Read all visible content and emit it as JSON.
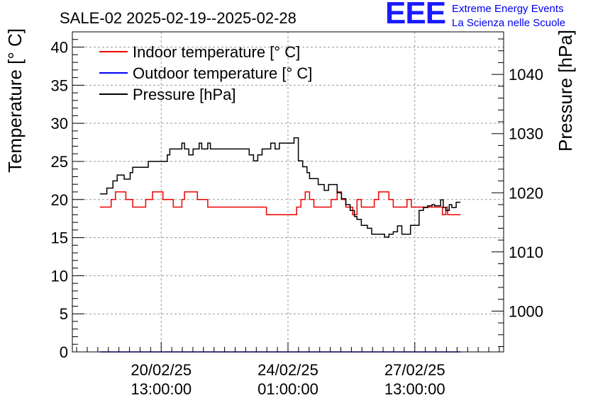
{
  "chart_data": {
    "type": "line",
    "title": "SALE-02 2025-02-19--2025-02-28",
    "ylabel": "Temperature [° C]",
    "y2label": "Pressure [hPa]",
    "ylim": [
      0,
      42
    ],
    "y2lim": [
      993.1,
      1047.2
    ],
    "xlim": [
      0,
      100
    ],
    "y_ticks": [
      0,
      5,
      10,
      15,
      20,
      25,
      30,
      35,
      40
    ],
    "y_tick_labels": [
      "0",
      "5",
      "10",
      "15",
      "20",
      "25",
      "30",
      "35",
      "40"
    ],
    "y2_ticks": [
      1000,
      1010,
      1020,
      1030,
      1040
    ],
    "y2_tick_labels": [
      "1000",
      "1010",
      "1020",
      "1030",
      "1040"
    ],
    "x_ticks": [
      {
        "x": 20.6,
        "date": "20/02/25",
        "time": "13:00:00"
      },
      {
        "x": 50.0,
        "date": "24/02/25",
        "time": "01:00:00"
      },
      {
        "x": 79.4,
        "date": "27/02/25",
        "time": "13:00:00"
      }
    ],
    "grid": true,
    "legend_position": "top-left",
    "series": [
      {
        "name": "Indoor temperature [° C]",
        "color": "#ee0000",
        "axis": "left",
        "x": [
          6.4,
          8.0,
          9.0,
          10.0,
          11.4,
          12.4,
          13.4,
          14.0,
          16.4,
          17.0,
          18.6,
          19.4,
          21.0,
          22.0,
          23.4,
          24.4,
          25.4,
          26.0,
          28.4,
          29.0,
          30.6,
          31.4,
          33.0,
          34.0,
          35.4,
          36.4,
          44.0,
          45.0,
          51.4,
          52.0,
          53.0,
          54.0,
          55.0,
          56.0,
          59.0,
          60.0,
          61.0,
          61.4,
          62.4,
          63.4,
          64.4,
          65.0,
          66.0,
          67.0,
          69.4,
          70.0,
          71.0,
          72.4,
          73.4,
          74.4,
          77.0,
          77.6,
          78.6,
          79.0,
          81.4,
          82.4,
          83.4,
          85.4,
          85.8,
          86.6,
          87.0,
          89.0,
          90.0
        ],
        "y": [
          19,
          19,
          20,
          21,
          21,
          20,
          20,
          19,
          19,
          20,
          21,
          21,
          20,
          20,
          19,
          19,
          20,
          21,
          21,
          20,
          20,
          19,
          19,
          19,
          19,
          19,
          19,
          18,
          18,
          19,
          20,
          21,
          20,
          19,
          19,
          20,
          20,
          21,
          20,
          19,
          19,
          18,
          20,
          19,
          19,
          20,
          21,
          21,
          20,
          19,
          19,
          20,
          19,
          19,
          19,
          19,
          19,
          19,
          18,
          19,
          18,
          18,
          18
        ]
      },
      {
        "name": "Outdoor temperature [° C]",
        "color": "#0000ee",
        "axis": "left",
        "x": [
          6.4,
          90.0
        ],
        "y": [
          0,
          0
        ]
      },
      {
        "name": "Pressure [hPa]",
        "color": "#000000",
        "axis": "right",
        "x": [
          6.4,
          8.0,
          9.4,
          10.4,
          11.4,
          12.0,
          13.4,
          14.0,
          17.0,
          17.6,
          18.6,
          22.0,
          22.6,
          24.4,
          25.4,
          26.0,
          27.0,
          28.0,
          29.4,
          30.0,
          31.4,
          32.0,
          33.0,
          34.0,
          35.4,
          36.0,
          41.0,
          42.0,
          43.0,
          44.0,
          45.4,
          46.0,
          47.0,
          48.0,
          49.4,
          50.0,
          50.6,
          51.4,
          52.4,
          53.4,
          54.4,
          55.0,
          57.0,
          58.4,
          59.4,
          60.4,
          61.4,
          62.4,
          63.4,
          64.4,
          65.4,
          66.0,
          67.0,
          68.4,
          69.4,
          70.4,
          72.4,
          73.4,
          74.4,
          75.4,
          76.4,
          78.4,
          80.4,
          81.4,
          82.4,
          83.4,
          84.0,
          85.4,
          86.0,
          86.6,
          87.4,
          88.0,
          89.0,
          90.0
        ],
        "y": [
          1019.8,
          1020.8,
          1022.0,
          1023.0,
          1023.0,
          1022.3,
          1023.4,
          1024.3,
          1024.3,
          1025.3,
          1025.3,
          1026.4,
          1027.4,
          1027.4,
          1028.4,
          1027.4,
          1026.4,
          1027.4,
          1028.4,
          1027.4,
          1028.4,
          1027.4,
          1027.4,
          1027.4,
          1027.4,
          1027.4,
          1026.4,
          1025.4,
          1026.4,
          1027.4,
          1027.4,
          1028.4,
          1027.4,
          1028.4,
          1028.4,
          1028.4,
          1028.4,
          1029.3,
          1025.4,
          1024.4,
          1023.4,
          1022.4,
          1021.4,
          1020.4,
          1021.4,
          1021.4,
          1020.0,
          1019.0,
          1018.0,
          1017.0,
          1016.0,
          1015.5,
          1014.5,
          1014.0,
          1013.0,
          1013.0,
          1012.5,
          1013.0,
          1013.4,
          1014.4,
          1013.0,
          1014.5,
          1017.0,
          1017.5,
          1017.8,
          1018.0,
          1017.8,
          1018.8,
          1017.5,
          1017.0,
          1018.0,
          1017.5,
          1018.4,
          1018.4
        ]
      }
    ]
  },
  "logo": {
    "mark": "EEE",
    "line1": "Extreme Energy Events",
    "line2": "La Scienza nelle Scuole",
    "color": "#1a1aff"
  }
}
